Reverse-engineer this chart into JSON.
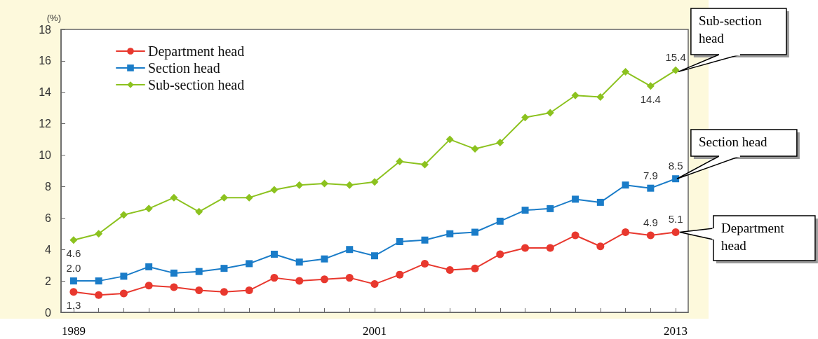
{
  "chart_data": {
    "type": "line",
    "ylabel": "(%)",
    "categories": [
      "1989",
      null,
      null,
      null,
      null,
      null,
      null,
      null,
      null,
      null,
      null,
      null,
      "2001",
      null,
      null,
      null,
      null,
      null,
      null,
      null,
      null,
      null,
      null,
      null,
      "2013"
    ],
    "series": [
      {
        "name": "Department head",
        "color": "#e8382e",
        "marker": "circle",
        "values": [
          1.3,
          1.1,
          1.2,
          1.7,
          1.6,
          1.4,
          1.3,
          1.4,
          2.2,
          2.0,
          2.1,
          2.2,
          1.8,
          2.4,
          3.1,
          2.7,
          2.8,
          3.7,
          4.1,
          4.1,
          4.9,
          4.2,
          5.1,
          4.9,
          5.1
        ],
        "value_labels": [
          "1.3",
          null,
          null,
          null,
          null,
          null,
          null,
          null,
          null,
          null,
          null,
          null,
          null,
          null,
          null,
          null,
          null,
          null,
          null,
          null,
          null,
          null,
          null,
          "4.9",
          "5.1"
        ]
      },
      {
        "name": "Section head",
        "color": "#1a7cc8",
        "marker": "square",
        "values": [
          2.0,
          2.0,
          2.3,
          2.9,
          2.5,
          2.6,
          2.8,
          3.1,
          3.7,
          3.2,
          3.4,
          4.0,
          3.6,
          4.5,
          4.6,
          5.0,
          5.1,
          5.8,
          6.5,
          6.6,
          7.2,
          7.0,
          8.1,
          7.9,
          8.5
        ],
        "value_labels": [
          "2.0",
          null,
          null,
          null,
          null,
          null,
          null,
          null,
          null,
          null,
          null,
          null,
          null,
          null,
          null,
          null,
          null,
          null,
          null,
          null,
          null,
          null,
          null,
          "7.9",
          "8.5"
        ]
      },
      {
        "name": "Sub-section head",
        "color": "#8cc21f",
        "marker": "diamond",
        "values": [
          4.6,
          5.0,
          6.2,
          6.6,
          7.3,
          6.4,
          7.3,
          7.3,
          7.8,
          8.1,
          8.2,
          8.1,
          8.3,
          9.6,
          9.4,
          11.0,
          10.4,
          10.8,
          12.4,
          12.7,
          13.8,
          13.7,
          15.3,
          14.4,
          15.4
        ],
        "value_labels": [
          "4.6",
          null,
          null,
          null,
          null,
          null,
          null,
          null,
          null,
          null,
          null,
          null,
          null,
          null,
          null,
          null,
          null,
          null,
          null,
          null,
          null,
          null,
          null,
          "14.4",
          "15.4"
        ]
      }
    ],
    "ylim": [
      0,
      18
    ],
    "yticks": [
      0,
      2,
      4,
      6,
      8,
      10,
      12,
      14,
      16,
      18
    ],
    "legend": "top left",
    "grid": false,
    "annotations": [
      {
        "text": "Sub-section head",
        "x": "2013",
        "y": 15.4
      },
      {
        "text": "Section head",
        "x": "2013",
        "y": 8.5
      },
      {
        "text": "Department head",
        "x": "2013",
        "y": 5.1
      }
    ]
  }
}
